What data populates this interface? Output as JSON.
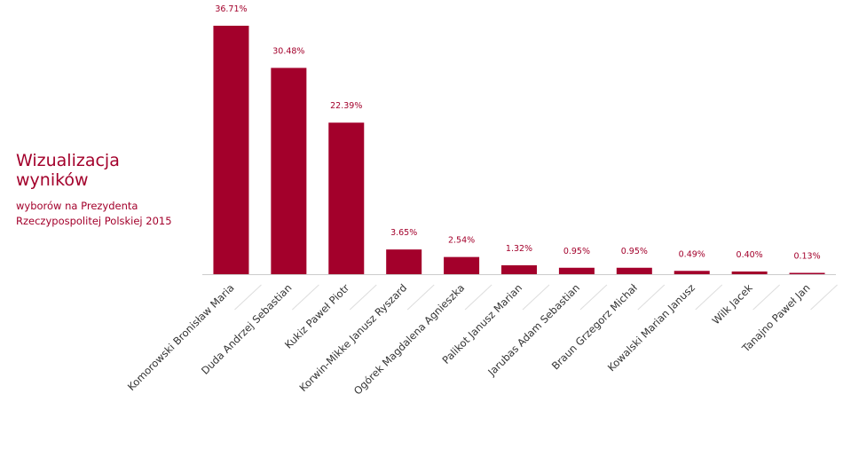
{
  "heading": {
    "title_line1": "Wizualizacja",
    "title_line2": "wyników",
    "subtitle_line1": "wyborów na Prezydenta",
    "subtitle_line2": "Rzeczypospolitej Polskiej 2015"
  },
  "chart_data": {
    "type": "bar",
    "categories": [
      "Komorowski Bronisław Maria",
      "Duda Andrzej Sebastian",
      "Kukiz Paweł Piotr",
      "Korwin-Mikke Janusz Ryszard",
      "Ogórek Magdalena Agnieszka",
      "Palikot Janusz Marian",
      "Jarubas Adam Sebastian",
      "Braun Grzegorz Michał",
      "Kowalski Marian Janusz",
      "Wilk Jacek",
      "Tanajno Paweł Jan"
    ],
    "values": [
      36.71,
      30.48,
      22.39,
      3.65,
      2.54,
      1.32,
      0.95,
      0.95,
      0.49,
      0.4,
      0.13
    ],
    "value_labels": [
      "36.71%",
      "30.48%",
      "22.39%",
      "3.65%",
      "2.54%",
      "1.32%",
      "0.95%",
      "0.95%",
      "0.49%",
      "0.40%",
      "0.13%"
    ],
    "ylim": [
      0,
      36.71
    ],
    "grid": false,
    "colors": {
      "bar": "#a3002b",
      "label": "#a3002b",
      "axis": "#cccccc",
      "tick_text": "#333333"
    }
  }
}
